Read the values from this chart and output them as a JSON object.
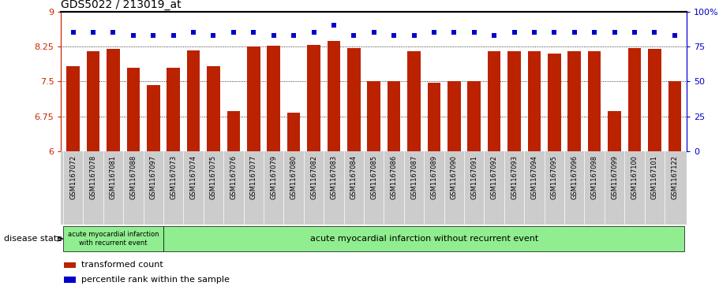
{
  "title": "GDS5022 / 213019_at",
  "categories": [
    "GSM1167072",
    "GSM1167078",
    "GSM1167081",
    "GSM1167088",
    "GSM1167097",
    "GSM1167073",
    "GSM1167074",
    "GSM1167075",
    "GSM1167076",
    "GSM1167077",
    "GSM1167079",
    "GSM1167080",
    "GSM1167082",
    "GSM1167083",
    "GSM1167084",
    "GSM1167085",
    "GSM1167086",
    "GSM1167087",
    "GSM1167089",
    "GSM1167090",
    "GSM1167091",
    "GSM1167092",
    "GSM1167093",
    "GSM1167094",
    "GSM1167095",
    "GSM1167096",
    "GSM1167098",
    "GSM1167099",
    "GSM1167100",
    "GSM1167101",
    "GSM1167122"
  ],
  "bar_values": [
    7.82,
    8.15,
    8.2,
    7.8,
    7.42,
    7.8,
    8.16,
    7.82,
    6.87,
    8.25,
    8.26,
    6.83,
    8.28,
    8.36,
    8.22,
    7.5,
    7.5,
    8.15,
    7.48,
    7.5,
    7.5,
    8.15,
    8.15,
    8.15,
    8.1,
    8.15,
    8.15,
    6.87,
    8.22,
    8.2,
    7.5
  ],
  "blue_values": [
    85,
    85,
    85,
    83,
    83,
    83,
    85,
    83,
    85,
    85,
    83,
    83,
    85,
    90,
    83,
    85,
    83,
    83,
    85,
    85,
    85,
    83,
    85,
    85,
    85,
    85,
    85,
    85,
    85,
    85,
    83
  ],
  "bar_color": "#bb2200",
  "dot_color": "#0000cc",
  "ylim_left": [
    6,
    9
  ],
  "ylim_right": [
    0,
    100
  ],
  "yticks_left": [
    6,
    6.75,
    7.5,
    8.25,
    9
  ],
  "yticks_right": [
    0,
    25,
    50,
    75,
    100
  ],
  "ytick_labels_left": [
    "6",
    "6.75",
    "7.5",
    "8.25",
    "9"
  ],
  "ytick_labels_right": [
    "0",
    "25",
    "50",
    "75",
    "100%"
  ],
  "grid_values": [
    6.75,
    7.5,
    8.25
  ],
  "group1_label": "acute myocardial infarction\nwith recurrent event",
  "group2_label": "acute myocardial infarction without recurrent event",
  "group1_count": 5,
  "disease_state_label": "disease state",
  "legend_bar_label": "transformed count",
  "legend_dot_label": "percentile rank within the sample",
  "group_bar_bg": "#90EE90",
  "xtick_bg": "#cccccc",
  "title_fontsize": 10,
  "axis_label_color_left": "#cc2200",
  "axis_label_color_right": "#0000cc"
}
